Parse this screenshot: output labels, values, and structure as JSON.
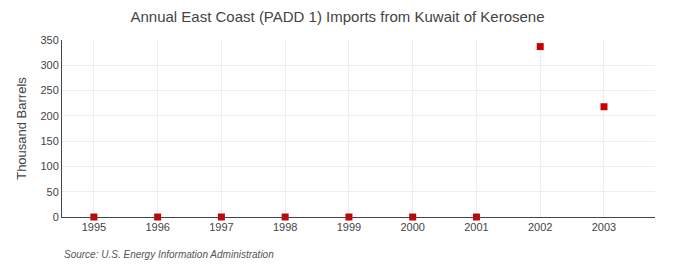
{
  "chart_data": {
    "type": "scatter",
    "title": "Annual East Coast (PADD 1) Imports from Kuwait of Kerosene",
    "ylabel": "Thousand Barrels",
    "annotations": [
      "Source: U.S. Energy Information Administration"
    ],
    "x": [
      1995,
      1996,
      1997,
      1998,
      1999,
      2000,
      2001,
      2002,
      2003
    ],
    "values": [
      0,
      0,
      0,
      0,
      0,
      0,
      0,
      337,
      218
    ],
    "color": "#cc0000",
    "marker": "square",
    "xlim": [
      1994.5,
      2003.8
    ],
    "xticks": [
      1995,
      1996,
      1997,
      1998,
      1999,
      2000,
      2001,
      2002,
      2003
    ],
    "ylim": [
      0,
      350
    ],
    "yticks": [
      0,
      50,
      100,
      150,
      200,
      250,
      300,
      350
    ],
    "grid": true
  }
}
